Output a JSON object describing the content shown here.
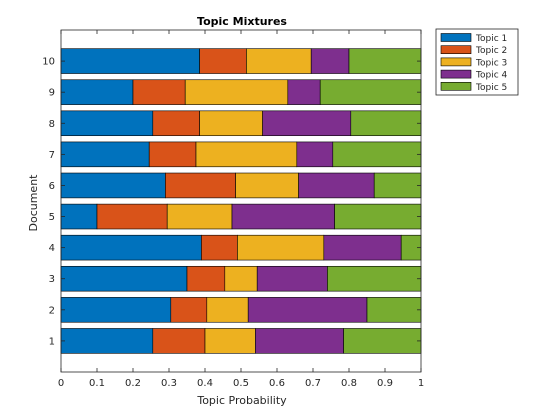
{
  "chart_data": {
    "type": "bar",
    "orientation": "horizontal",
    "stacked": true,
    "title": "Topic Mixtures",
    "xlabel": "Topic Probability",
    "ylabel": "Document",
    "xlim": [
      0,
      1
    ],
    "ylim": [
      0,
      11
    ],
    "xticks": [
      "0",
      "0.1",
      "0.2",
      "0.3",
      "0.4",
      "0.5",
      "0.6",
      "0.7",
      "0.8",
      "0.9",
      "1"
    ],
    "categories": [
      "1",
      "2",
      "3",
      "4",
      "5",
      "6",
      "7",
      "8",
      "9",
      "10"
    ],
    "legend_position": "outside-top-right",
    "series": [
      {
        "name": "Topic 1",
        "color": "#0072BD",
        "values": [
          0.255,
          0.305,
          0.35,
          0.39,
          0.1,
          0.29,
          0.245,
          0.255,
          0.2,
          0.385
        ]
      },
      {
        "name": "Topic 2",
        "color": "#D95319",
        "values": [
          0.145,
          0.1,
          0.105,
          0.1,
          0.195,
          0.195,
          0.13,
          0.13,
          0.145,
          0.13
        ]
      },
      {
        "name": "Topic 3",
        "color": "#EDB120",
        "values": [
          0.14,
          0.115,
          0.09,
          0.24,
          0.18,
          0.175,
          0.28,
          0.175,
          0.285,
          0.18
        ]
      },
      {
        "name": "Topic 4",
        "color": "#7E2F8E",
        "values": [
          0.245,
          0.33,
          0.195,
          0.215,
          0.285,
          0.21,
          0.1,
          0.245,
          0.09,
          0.105
        ]
      },
      {
        "name": "Topic 5",
        "color": "#77AC30",
        "values": [
          0.215,
          0.15,
          0.26,
          0.055,
          0.24,
          0.13,
          0.245,
          0.195,
          0.28,
          0.2
        ]
      }
    ]
  }
}
